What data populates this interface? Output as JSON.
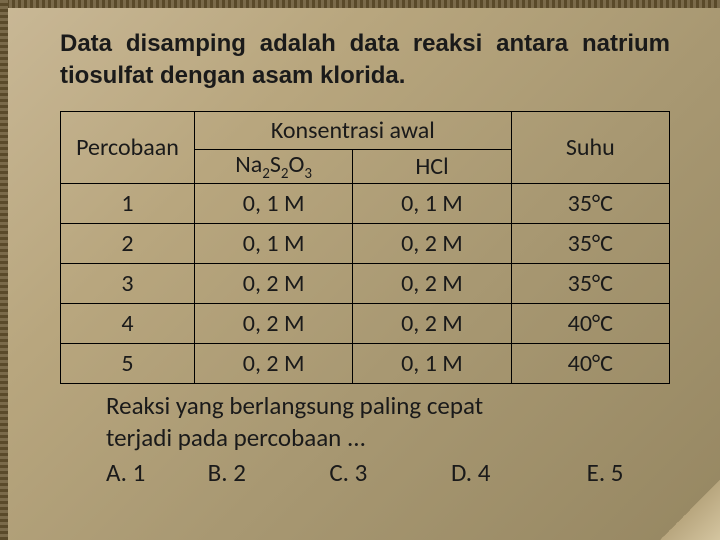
{
  "title": "Data disamping adalah data reaksi antara natrium tiosulfat dengan asam klorida.",
  "table": {
    "headers": {
      "percobaan": "Percobaan",
      "konsentrasi": "Konsentrasi awal",
      "na2s2o3_html": "Na<sub>2</sub>S<sub>2</sub>O<sub>3</sub>",
      "hcl": "HCl",
      "suhu": "Suhu"
    },
    "rows": [
      {
        "n": "1",
        "na": "0, 1 M",
        "hcl": "0, 1 M",
        "suhu": "35°C"
      },
      {
        "n": "2",
        "na": "0, 1 M",
        "hcl": "0, 2 M",
        "suhu": "35°C"
      },
      {
        "n": "3",
        "na": "0, 2 M",
        "hcl": "0, 2 M",
        "suhu": "35°C"
      },
      {
        "n": "4",
        "na": "0, 2 M",
        "hcl": "0, 2 M",
        "suhu": "40°C"
      },
      {
        "n": "5",
        "na": "0, 2 M",
        "hcl": "0, 1 M",
        "suhu": "40°C"
      }
    ]
  },
  "question_line1": "Reaksi yang berlangsung paling cepat",
  "question_line2": "terjadi pada percobaan ...",
  "options": {
    "a": "A. 1",
    "b": "B.  2",
    "c": "C.  3",
    "d": "D.  4",
    "e": "E.   5"
  },
  "styling": {
    "background_gradient": [
      "#c9b896",
      "#b8a67e",
      "#a89872",
      "#968762"
    ],
    "border_colors": [
      "#5a4a2a",
      "#7a6a4a"
    ],
    "title_fontsize": 24,
    "table_fontsize": 24,
    "question_fontsize": 25,
    "table_border_color": "#000000",
    "text_color": "#1a1a1a",
    "column_widths_pct": [
      22,
      26,
      26,
      26
    ]
  }
}
